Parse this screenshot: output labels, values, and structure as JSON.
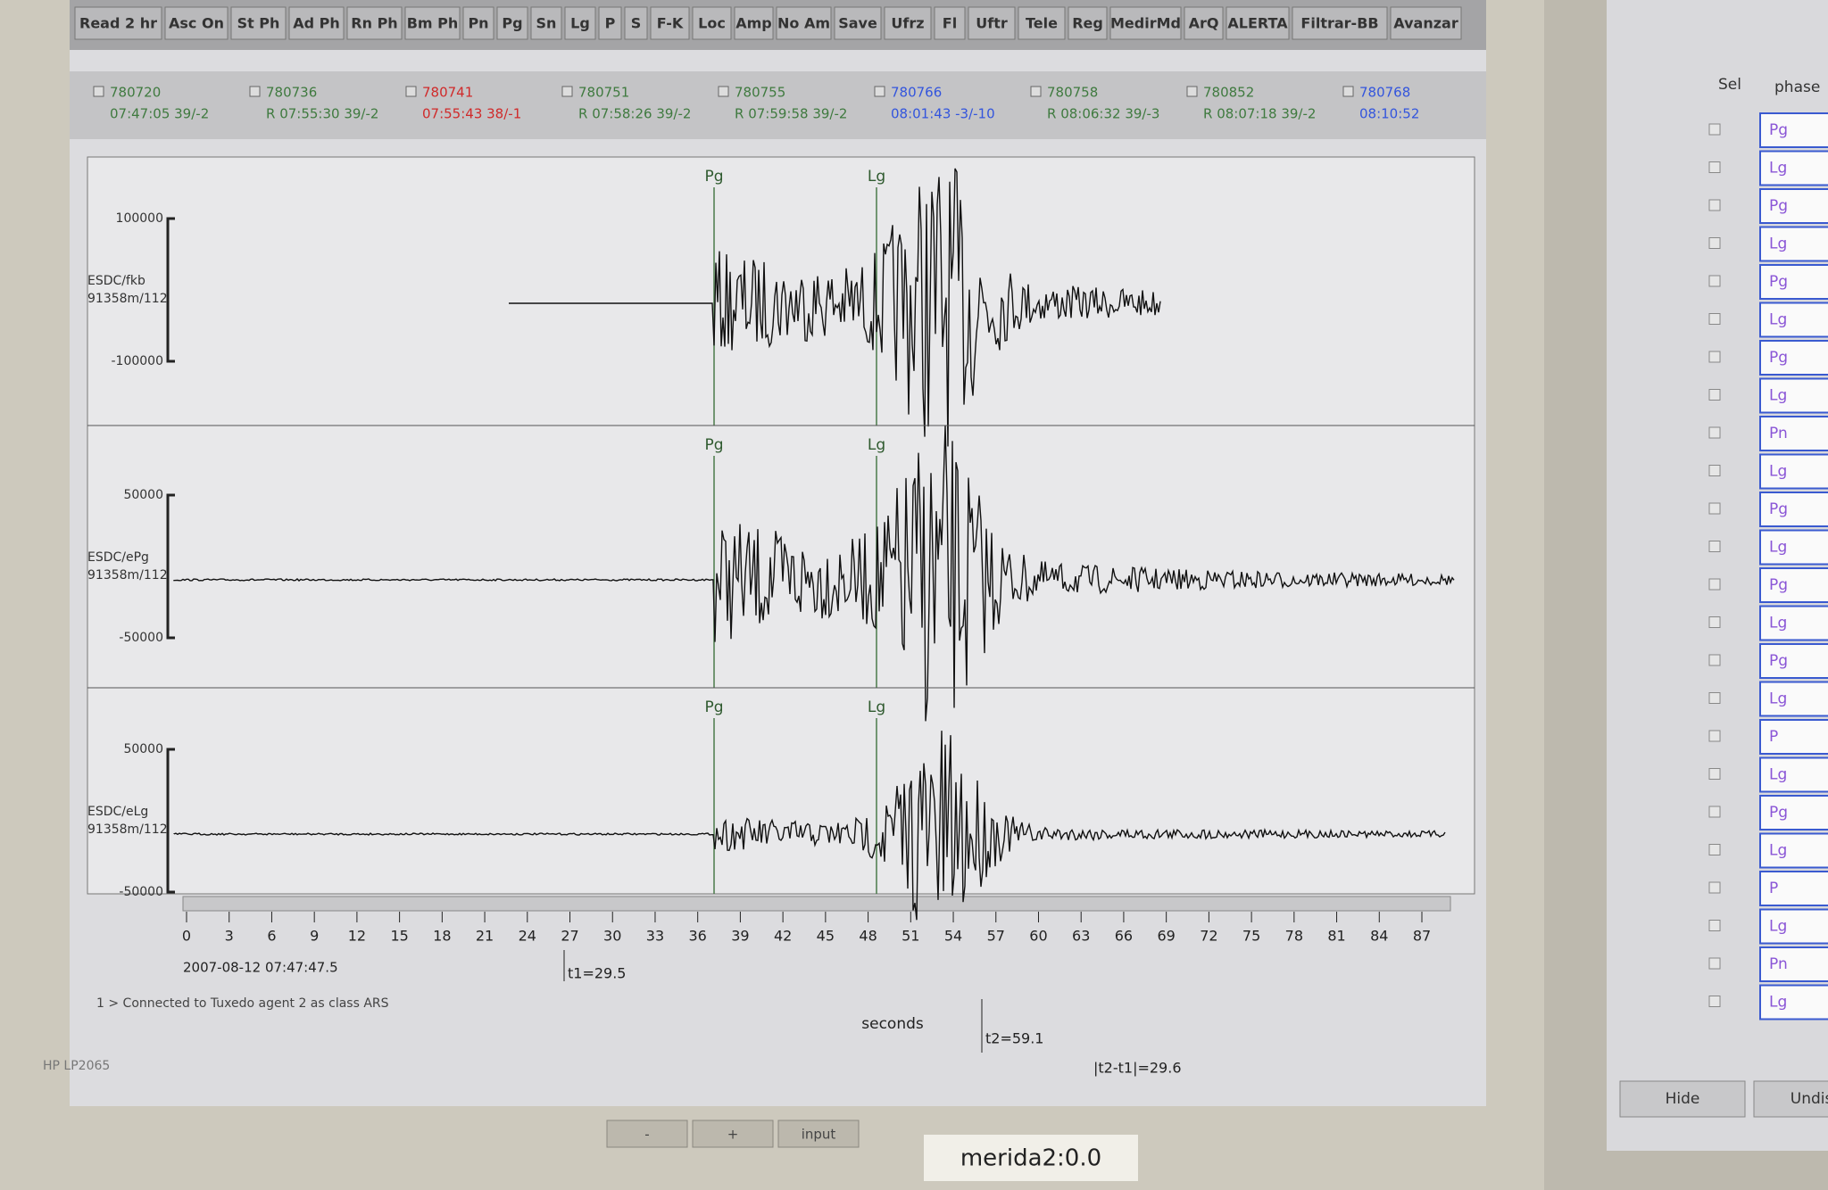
{
  "toolbar": [
    "Read 2 hr",
    "Asc On",
    "St Ph",
    "Ad Ph",
    "Rn Ph",
    "Bm Ph",
    "Pn",
    "Pg",
    "Sn",
    "Lg",
    "P",
    "S",
    "F-K",
    "Loc",
    "Amp",
    "No Am",
    "Save",
    "Ufrz",
    "Fl",
    "Uftr",
    "Tele",
    "Reg",
    "MedirMd",
    "ArQ",
    "ALERTA",
    "Filtrar-BB",
    "Avanzar"
  ],
  "events": [
    {
      "id": "780720",
      "time": "07:47:05 39/-2",
      "color": "#3f7a3f"
    },
    {
      "id": "780736",
      "time": "R 07:55:30 39/-2",
      "color": "#3f7a3f"
    },
    {
      "id": "780741",
      "time": "07:55:43 38/-1",
      "color": "#d02a2a"
    },
    {
      "id": "780751",
      "time": "R 07:58:26 39/-2",
      "color": "#3f7a3f"
    },
    {
      "id": "780755",
      "time": "R 07:59:58 39/-2",
      "color": "#3f7a3f"
    },
    {
      "id": "780766",
      "time": "08:01:43 -3/-10",
      "color": "#3355dd"
    },
    {
      "id": "780758",
      "time": "R 08:06:32 39/-3",
      "color": "#3f7a3f"
    },
    {
      "id": "780852",
      "time": "R 08:07:18 39/-2",
      "color": "#3f7a3f"
    },
    {
      "id": "780768",
      "time": "08:10:52",
      "color": "#3355dd"
    }
  ],
  "traces": [
    {
      "station": "ESDC/fkb",
      "info": "91358m/112",
      "max": "100000",
      "min": "-100000",
      "picks": [
        "Pg",
        "Lg"
      ]
    },
    {
      "station": "ESDC/ePg",
      "info": "91358m/112",
      "max": "50000",
      "min": "-50000",
      "picks": [
        "Pg",
        "Lg"
      ]
    },
    {
      "station": "ESDC/eLg",
      "info": "91358m/112",
      "max": "50000",
      "min": "-50000",
      "picks": [
        "Pg",
        "Lg"
      ]
    }
  ],
  "time_axis": {
    "ticks": [
      0,
      3,
      6,
      9,
      12,
      15,
      18,
      21,
      24,
      27,
      30,
      33,
      36,
      39,
      42,
      45,
      48,
      51,
      54,
      57,
      60,
      63,
      66,
      69,
      72,
      75,
      78,
      81,
      84,
      87
    ],
    "label": "seconds",
    "start": "2007-08-12 07:47:47.5",
    "t1": "t1=29.5",
    "t2": "t2=59.1",
    "diff": "|t2-t1|=29.6"
  },
  "status": "1 > Connected to Tuxedo agent 2 as class ARS",
  "monitor": {
    "model": "HP LP2065",
    "display": "merida2:0.0",
    "buttons": [
      "-",
      "+",
      "input"
    ]
  },
  "side_panel": {
    "headers": [
      "Sel",
      "phase"
    ],
    "phases": [
      "Pg",
      "Lg",
      "Pg",
      "Lg",
      "Pg",
      "Lg",
      "Pg",
      "Lg",
      "Pn",
      "Lg",
      "Pg",
      "Lg",
      "Pg",
      "Lg",
      "Pg",
      "Lg",
      "P",
      "Lg",
      "Pg",
      "Lg",
      "P",
      "Lg",
      "Pn",
      "Lg"
    ],
    "buttons": [
      "Hide",
      "Undisp"
    ]
  }
}
